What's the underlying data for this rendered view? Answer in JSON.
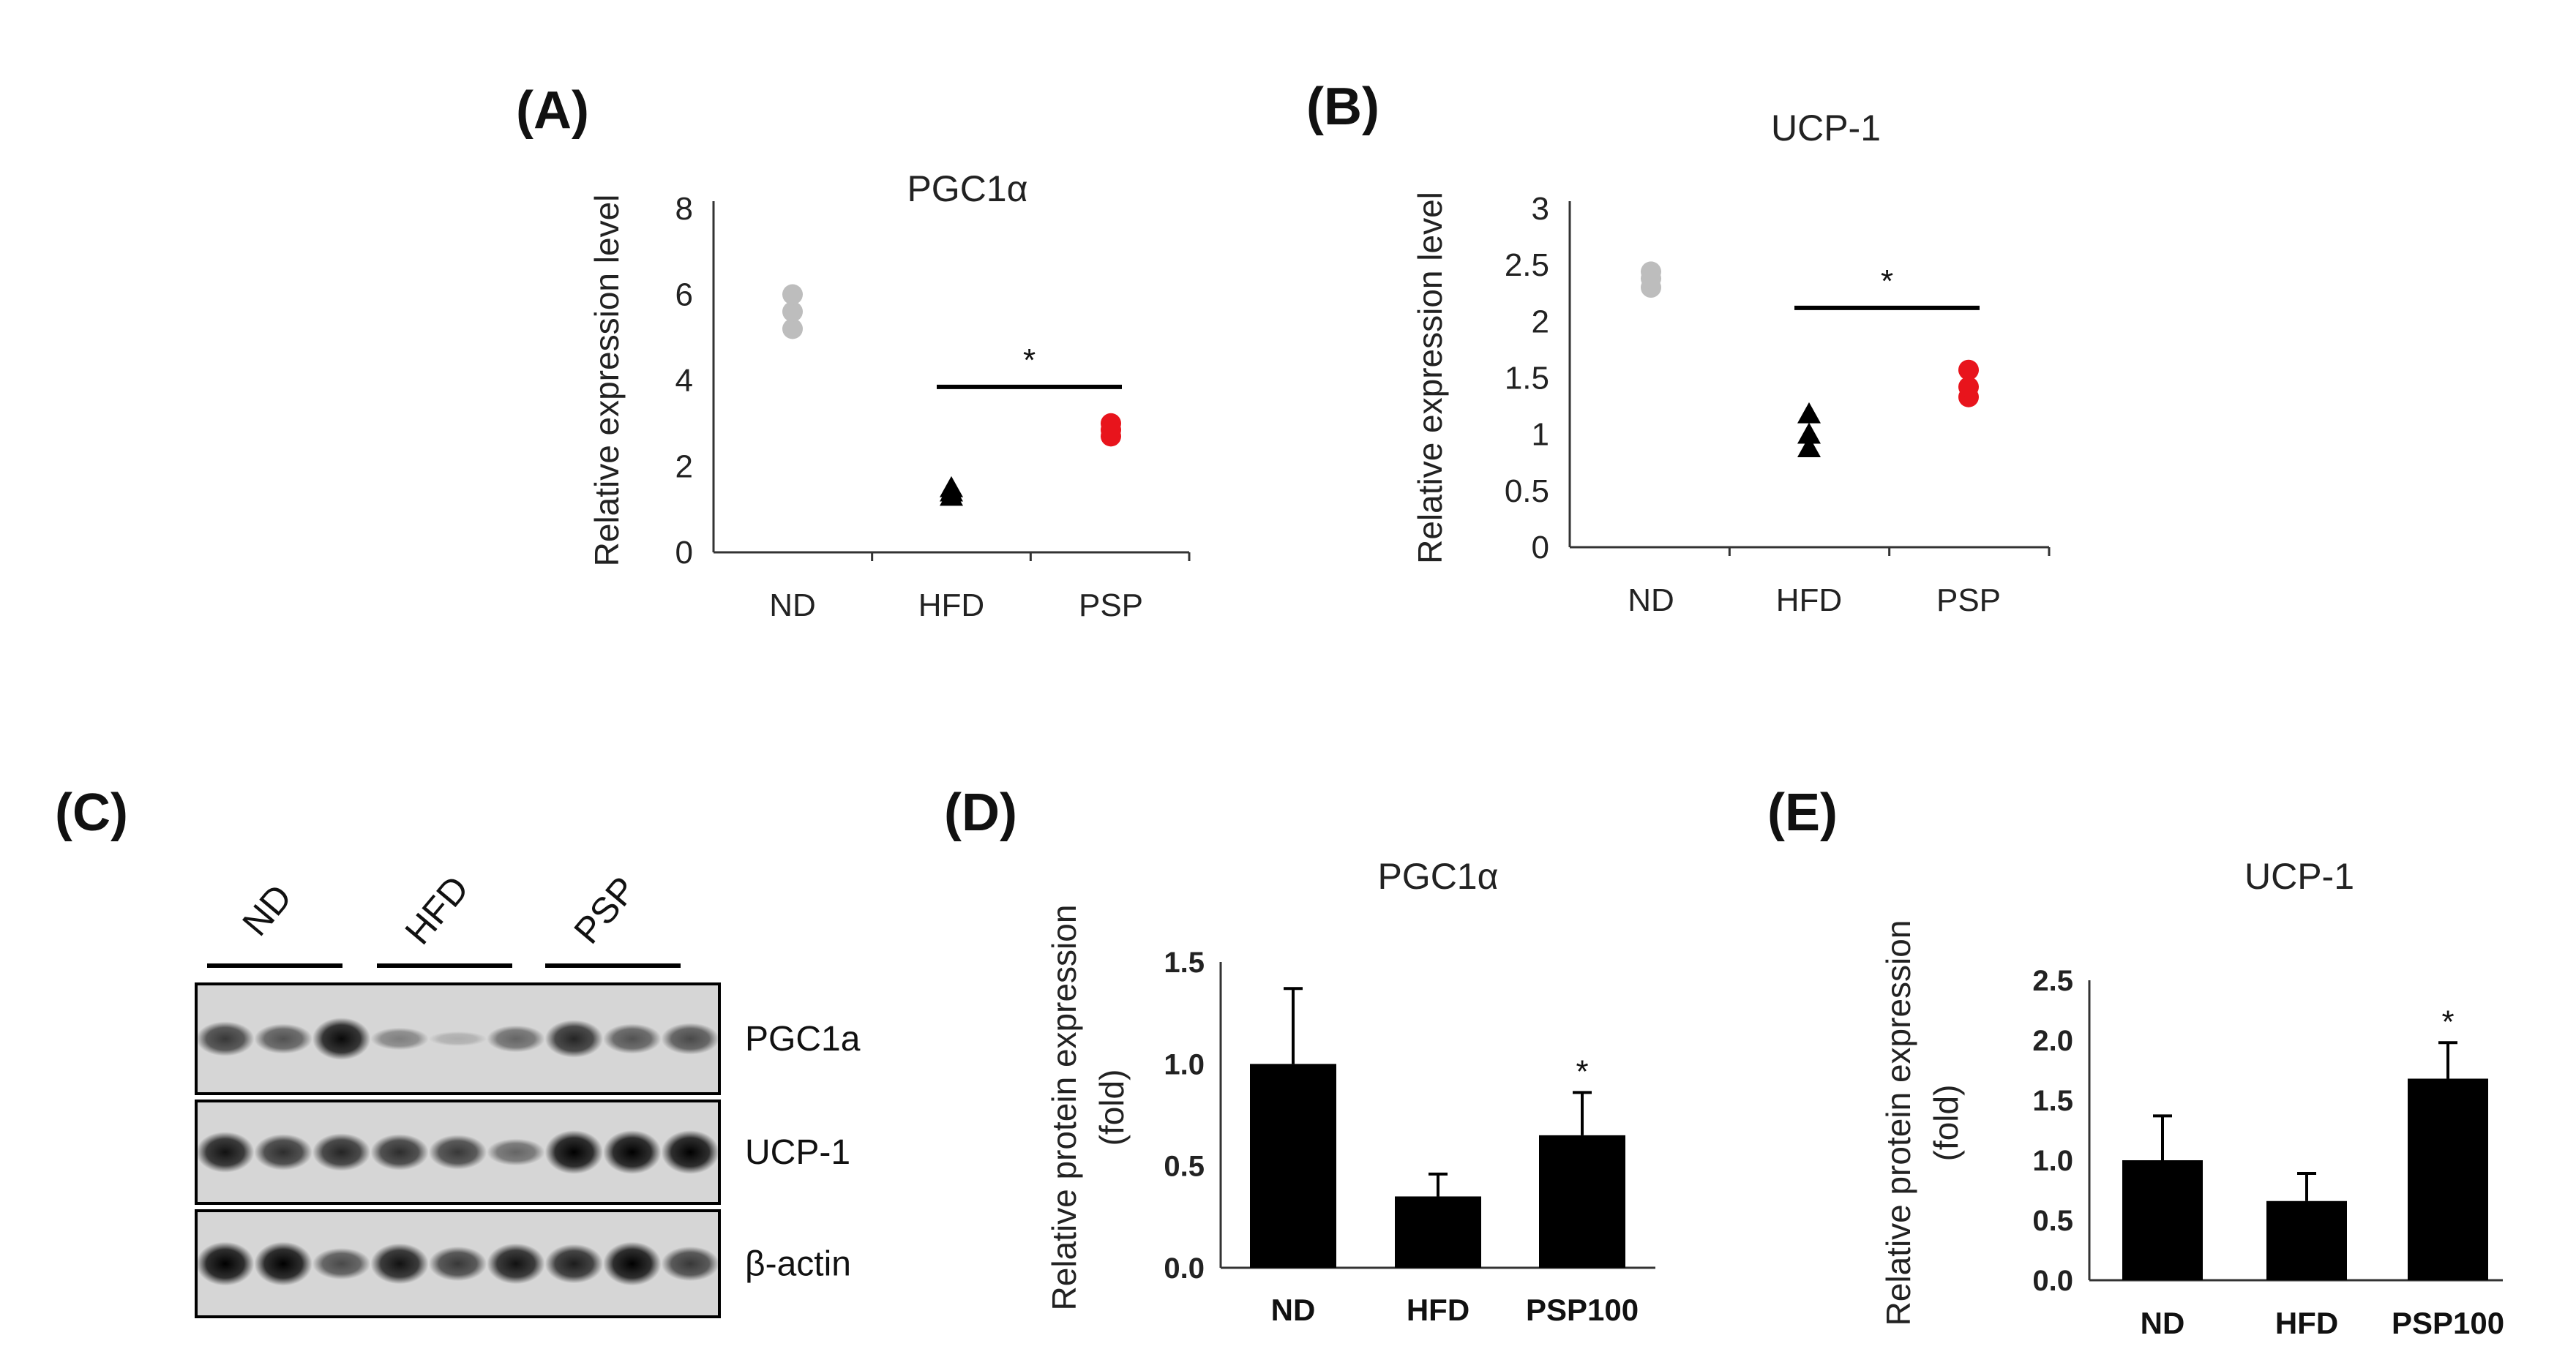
{
  "panels": {
    "A": "(A)",
    "B": "(B)",
    "C": "(C)",
    "D": "(D)",
    "E": "(E)"
  },
  "colors": {
    "ND": "#bdbdbd",
    "HFD": "#000000",
    "PSP": "#e8141c",
    "bar": "#000000"
  },
  "chart_data": [
    {
      "id": "A",
      "type": "scatter",
      "title": "PGC1α",
      "ylabel": "Relative expression level",
      "xlabel": "",
      "ylim": [
        0,
        8
      ],
      "yticks": [
        "0",
        "2",
        "4",
        "6",
        "8"
      ],
      "categories": [
        "ND",
        "HFD",
        "PSP"
      ],
      "series": [
        {
          "name": "ND",
          "marker": "circle",
          "values": [
            5.2,
            5.6,
            6.0
          ]
        },
        {
          "name": "HFD",
          "marker": "triangle",
          "values": [
            1.3,
            1.4,
            1.5
          ]
        },
        {
          "name": "PSP",
          "marker": "circle",
          "values": [
            2.7,
            2.85,
            3.0
          ]
        }
      ],
      "significance": {
        "from": "HFD",
        "to": "PSP",
        "y": 3.85,
        "label": "*"
      }
    },
    {
      "id": "B",
      "type": "scatter",
      "title": "UCP-1",
      "ylabel": "Relative expression level",
      "xlabel": "",
      "ylim": [
        0,
        3
      ],
      "yticks": [
        "0",
        "0.5",
        "1",
        "1.5",
        "2",
        "2.5",
        "3"
      ],
      "categories": [
        "ND",
        "HFD",
        "PSP"
      ],
      "series": [
        {
          "name": "ND",
          "marker": "circle",
          "values": [
            2.3,
            2.38,
            2.44
          ]
        },
        {
          "name": "HFD",
          "marker": "triangle",
          "values": [
            0.88,
            1.0,
            1.18
          ]
        },
        {
          "name": "PSP",
          "marker": "circle",
          "values": [
            1.33,
            1.42,
            1.57
          ]
        }
      ],
      "significance": {
        "from": "HFD",
        "to": "PSP",
        "y": 2.12,
        "label": "*"
      }
    },
    {
      "id": "D",
      "type": "bar",
      "title": "PGC1α",
      "ylabel": "Relative protein expression (fold)",
      "xlabel": "",
      "ylim": [
        0,
        1.5
      ],
      "yticks": [
        "0.0",
        "0.5",
        "1.0",
        "1.5"
      ],
      "categories": [
        "ND",
        "HFD",
        "PSP100"
      ],
      "values": [
        1.0,
        0.35,
        0.65
      ],
      "errors": [
        0.37,
        0.11,
        0.21
      ],
      "significance": [
        "",
        "",
        "*"
      ]
    },
    {
      "id": "E",
      "type": "bar",
      "title": "UCP-1",
      "ylabel": "Relative protein expression (fold)",
      "xlabel": "",
      "ylim": [
        0,
        2.5
      ],
      "yticks": [
        "0.0",
        "0.5",
        "1.0",
        "1.5",
        "2.0",
        "2.5"
      ],
      "categories": [
        "ND",
        "HFD",
        "PSP100"
      ],
      "values": [
        1.0,
        0.66,
        1.68
      ],
      "errors": [
        0.37,
        0.23,
        0.3
      ],
      "significance": [
        "",
        "",
        "*"
      ]
    }
  ],
  "blot": {
    "groups": [
      "ND",
      "HFD",
      "PSP"
    ],
    "rows": [
      {
        "label": "PGC1a",
        "bands": [
          0.7,
          0.55,
          0.95,
          0.3,
          0.05,
          0.45,
          0.8,
          0.55,
          0.6
        ]
      },
      {
        "label": "UCP-1",
        "bands": [
          0.9,
          0.75,
          0.8,
          0.75,
          0.7,
          0.45,
          1.0,
          1.0,
          1.0
        ]
      },
      {
        "label": "β-actin",
        "bands": [
          1.0,
          1.0,
          0.6,
          0.9,
          0.7,
          0.9,
          0.85,
          1.0,
          0.7
        ]
      }
    ]
  }
}
